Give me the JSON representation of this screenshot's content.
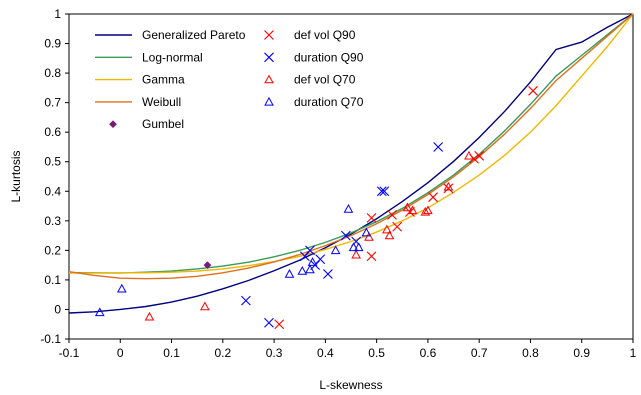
{
  "chart_data": {
    "type": "scatter",
    "title": "",
    "xlabel": "L-skewness",
    "ylabel": "L-kurtosis",
    "xlim": [
      -0.1,
      1.0
    ],
    "ylim": [
      -0.1,
      1.0
    ],
    "x_ticks": [
      "-0.1",
      "0",
      "0.1",
      "0.2",
      "0.3",
      "0.4",
      "0.5",
      "0.6",
      "0.7",
      "0.8",
      "0.9",
      "1"
    ],
    "y_ticks": [
      "-0.1",
      "0",
      "0.1",
      "0.2",
      "0.3",
      "0.4",
      "0.5",
      "0.6",
      "0.7",
      "0.8",
      "0.9",
      "1"
    ],
    "grid": false,
    "legend_position": "top-left",
    "series": [
      {
        "name": "Generalized Pareto",
        "kind": "line",
        "color": "#000080",
        "points": [
          [
            -0.1,
            -0.012
          ],
          [
            -0.05,
            -0.008
          ],
          [
            0,
            0
          ],
          [
            0.05,
            0.01
          ],
          [
            0.1,
            0.025
          ],
          [
            0.15,
            0.045
          ],
          [
            0.2,
            0.07
          ],
          [
            0.25,
            0.098
          ],
          [
            0.3,
            0.131
          ],
          [
            0.35,
            0.167
          ],
          [
            0.4,
            0.209
          ],
          [
            0.45,
            0.255
          ],
          [
            0.5,
            0.307
          ],
          [
            0.55,
            0.365
          ],
          [
            0.6,
            0.429
          ],
          [
            0.65,
            0.501
          ],
          [
            0.7,
            0.582
          ],
          [
            0.75,
            0.671
          ],
          [
            0.8,
            0.77
          ],
          [
            0.85,
            0.88
          ],
          [
            0.9,
            0.905
          ],
          [
            0.95,
            0.955
          ],
          [
            1.0,
            1.0
          ]
        ]
      },
      {
        "name": "Log-normal",
        "kind": "line",
        "color": "#3a9b5a",
        "points": [
          [
            -0.1,
            0.125
          ],
          [
            -0.05,
            0.124
          ],
          [
            0,
            0.123
          ],
          [
            0.05,
            0.126
          ],
          [
            0.1,
            0.13
          ],
          [
            0.15,
            0.137
          ],
          [
            0.2,
            0.147
          ],
          [
            0.25,
            0.16
          ],
          [
            0.3,
            0.178
          ],
          [
            0.35,
            0.2
          ],
          [
            0.4,
            0.227
          ],
          [
            0.45,
            0.259
          ],
          [
            0.5,
            0.297
          ],
          [
            0.55,
            0.342
          ],
          [
            0.6,
            0.395
          ],
          [
            0.65,
            0.455
          ],
          [
            0.7,
            0.525
          ],
          [
            0.75,
            0.605
          ],
          [
            0.8,
            0.694
          ],
          [
            0.85,
            0.79
          ],
          [
            0.9,
            0.86
          ],
          [
            0.95,
            0.93
          ],
          [
            1.0,
            1.0
          ]
        ]
      },
      {
        "name": "Gamma",
        "kind": "line",
        "color": "#f0b800",
        "points": [
          [
            -0.1,
            0.123
          ],
          [
            -0.05,
            0.123
          ],
          [
            0,
            0.124
          ],
          [
            0.05,
            0.124
          ],
          [
            0.1,
            0.126
          ],
          [
            0.15,
            0.13
          ],
          [
            0.2,
            0.137
          ],
          [
            0.25,
            0.148
          ],
          [
            0.3,
            0.162
          ],
          [
            0.35,
            0.18
          ],
          [
            0.4,
            0.203
          ],
          [
            0.45,
            0.23
          ],
          [
            0.5,
            0.262
          ],
          [
            0.55,
            0.3
          ],
          [
            0.6,
            0.344
          ],
          [
            0.65,
            0.396
          ],
          [
            0.7,
            0.455
          ],
          [
            0.75,
            0.522
          ],
          [
            0.8,
            0.6
          ],
          [
            0.85,
            0.69
          ],
          [
            0.9,
            0.79
          ],
          [
            0.95,
            0.89
          ],
          [
            1.0,
            1.0
          ]
        ]
      },
      {
        "name": "Weibull",
        "kind": "line",
        "color": "#e0701e",
        "points": [
          [
            -0.1,
            0.128
          ],
          [
            -0.05,
            0.115
          ],
          [
            0,
            0.106
          ],
          [
            0.05,
            0.104
          ],
          [
            0.1,
            0.106
          ],
          [
            0.15,
            0.112
          ],
          [
            0.2,
            0.124
          ],
          [
            0.25,
            0.14
          ],
          [
            0.3,
            0.161
          ],
          [
            0.35,
            0.186
          ],
          [
            0.4,
            0.216
          ],
          [
            0.45,
            0.25
          ],
          [
            0.5,
            0.29
          ],
          [
            0.55,
            0.336
          ],
          [
            0.6,
            0.389
          ],
          [
            0.65,
            0.449
          ],
          [
            0.7,
            0.517
          ],
          [
            0.75,
            0.594
          ],
          [
            0.8,
            0.68
          ],
          [
            0.85,
            0.775
          ],
          [
            0.9,
            0.85
          ],
          [
            0.95,
            0.925
          ],
          [
            1.0,
            1.0
          ]
        ]
      },
      {
        "name": "Gumbel",
        "kind": "point",
        "marker": "diamond",
        "color": "#7b1a7b",
        "points": [
          [
            0.17,
            0.15
          ]
        ]
      },
      {
        "name": "def vol Q90",
        "kind": "point",
        "marker": "x",
        "color": "#ff0000",
        "points": [
          [
            0.31,
            -0.05
          ],
          [
            0.49,
            0.31
          ],
          [
            0.49,
            0.18
          ],
          [
            0.53,
            0.32
          ],
          [
            0.54,
            0.28
          ],
          [
            0.565,
            0.33
          ],
          [
            0.61,
            0.38
          ],
          [
            0.64,
            0.41
          ],
          [
            0.69,
            0.51
          ],
          [
            0.7,
            0.52
          ],
          [
            0.805,
            0.74
          ]
        ]
      },
      {
        "name": "duration Q90",
        "kind": "point",
        "marker": "x",
        "color": "#0000ff",
        "points": [
          [
            0.245,
            0.03
          ],
          [
            0.29,
            -0.045
          ],
          [
            0.36,
            0.18
          ],
          [
            0.37,
            0.2
          ],
          [
            0.38,
            0.15
          ],
          [
            0.39,
            0.17
          ],
          [
            0.405,
            0.12
          ],
          [
            0.44,
            0.25
          ],
          [
            0.46,
            0.23
          ],
          [
            0.51,
            0.4
          ],
          [
            0.515,
            0.4
          ],
          [
            0.62,
            0.55
          ]
        ]
      },
      {
        "name": "def vol Q70",
        "kind": "point",
        "marker": "triangle",
        "color": "#ff0000",
        "points": [
          [
            0.057,
            -0.025
          ],
          [
            0.165,
            0.01
          ],
          [
            0.46,
            0.185
          ],
          [
            0.485,
            0.245
          ],
          [
            0.52,
            0.27
          ],
          [
            0.525,
            0.25
          ],
          [
            0.56,
            0.345
          ],
          [
            0.57,
            0.335
          ],
          [
            0.595,
            0.33
          ],
          [
            0.6,
            0.335
          ],
          [
            0.64,
            0.415
          ],
          [
            0.68,
            0.52
          ]
        ]
      },
      {
        "name": "duration Q70",
        "kind": "point",
        "marker": "triangle",
        "color": "#0000ff",
        "points": [
          [
            -0.04,
            -0.01
          ],
          [
            0.003,
            0.07
          ],
          [
            0.33,
            0.12
          ],
          [
            0.355,
            0.13
          ],
          [
            0.37,
            0.135
          ],
          [
            0.375,
            0.16
          ],
          [
            0.42,
            0.2
          ],
          [
            0.445,
            0.34
          ],
          [
            0.455,
            0.21
          ],
          [
            0.465,
            0.21
          ],
          [
            0.48,
            0.26
          ]
        ]
      }
    ]
  }
}
